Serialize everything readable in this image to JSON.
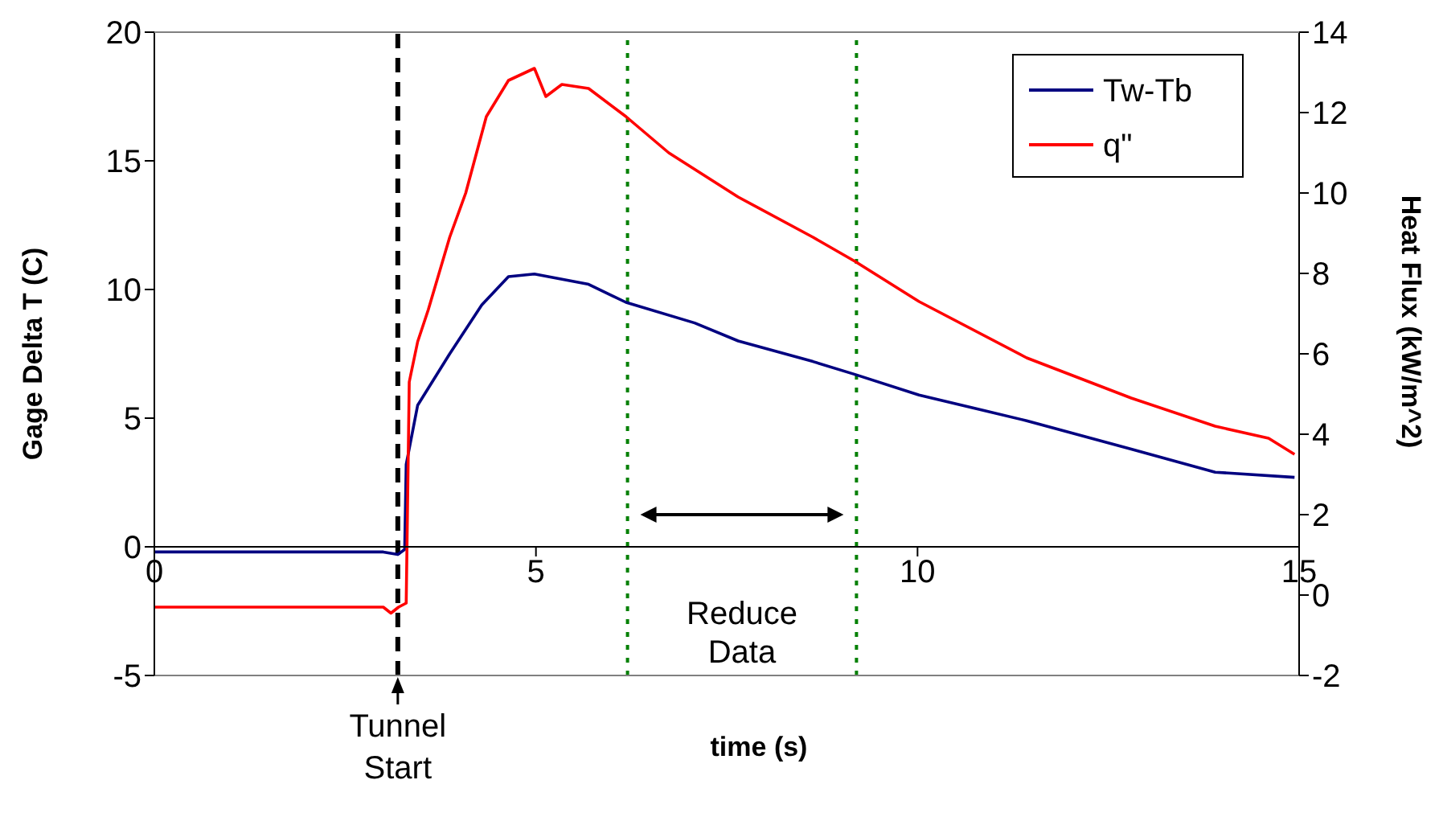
{
  "chart_data": {
    "type": "line",
    "xlabel": "time (s)",
    "ylabel": "Gage Delta T (C)",
    "y2label": "Heat Flux (kW/m^2)",
    "xlim": [
      0,
      15
    ],
    "xticks": [
      0,
      5,
      10,
      15
    ],
    "ylim": [
      -5,
      20
    ],
    "yticks": [
      -5,
      0,
      5,
      10,
      15,
      20
    ],
    "y2lim": [
      -2,
      14
    ],
    "y2ticks": [
      -2,
      0,
      2,
      4,
      6,
      8,
      10,
      12,
      14
    ],
    "grid": false,
    "legend": "top right",
    "line_style": "solid",
    "marker": "none",
    "series": [
      {
        "name": "Tw-Tb",
        "color": "#000080",
        "x": [
          0,
          1,
          2,
          3,
          3.19,
          3.28,
          3.3,
          3.45,
          3.87,
          4.29,
          4.64,
          4.98,
          5.69,
          6.18,
          7.08,
          7.65,
          8.63,
          9.18,
          10.02,
          11.43,
          12.8,
          13.9,
          14.94
        ],
        "values": [
          -0.2,
          -0.2,
          -0.2,
          -0.2,
          -0.3,
          -0.1,
          3.2,
          5.5,
          7.5,
          9.4,
          10.5,
          10.6,
          10.2,
          9.5,
          8.7,
          8.0,
          7.2,
          6.7,
          5.9,
          4.9,
          3.8,
          2.9,
          2.7
        ]
      },
      {
        "name": "q\"",
        "color": "#ff0000",
        "x": [
          0,
          1,
          2,
          3,
          3.1,
          3.2,
          3.3,
          3.34,
          3.45,
          3.59,
          3.87,
          4.08,
          4.35,
          4.64,
          4.98,
          5.13,
          5.34,
          5.69,
          6.18,
          6.74,
          7.65,
          8.63,
          9.18,
          10.02,
          11.43,
          12.8,
          13.9,
          14.6,
          14.94
        ],
        "values": [
          -0.3,
          -0.3,
          -0.3,
          -0.3,
          -0.45,
          -0.3,
          -0.2,
          5.3,
          6.3,
          7.1,
          8.9,
          10.0,
          11.9,
          12.8,
          13.1,
          12.4,
          12.7,
          12.6,
          11.9,
          11.0,
          9.9,
          8.9,
          8.3,
          7.3,
          5.9,
          4.9,
          4.2,
          3.9,
          3.5
        ],
        "axis": "y2"
      }
    ],
    "ref_lines": [
      {
        "axis": "x",
        "value": 3.19,
        "label": "Tunnel Start",
        "color": "#000000",
        "line_style": "dashed"
      },
      {
        "axis": "x",
        "value": 6.2,
        "color": "#008000",
        "line_style": "dotted"
      },
      {
        "axis": "x",
        "value": 9.2,
        "color": "#008000",
        "line_style": "dotted"
      }
    ],
    "annotations": [
      "Reduce Data"
    ]
  }
}
